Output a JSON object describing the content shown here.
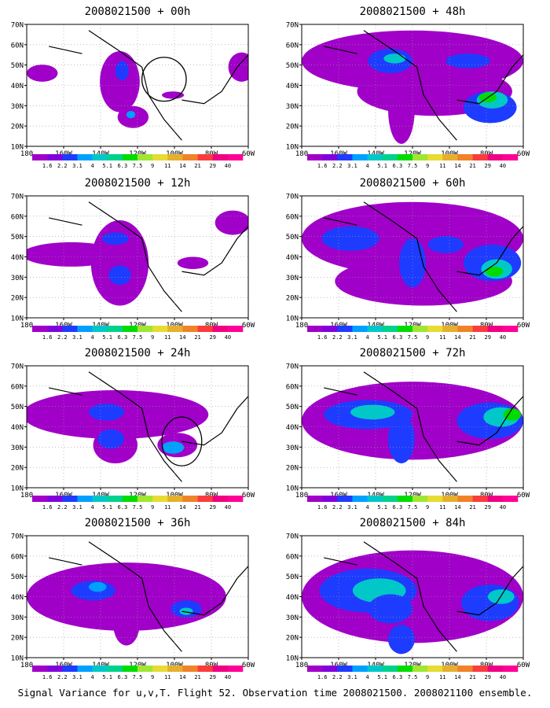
{
  "caption": "Signal Variance for u,v,T. Flight 52. Observation time 2008021500. 2008021100 ensemble.",
  "lat_labels": [
    "70N",
    "60N",
    "50N",
    "40N",
    "30N",
    "20N",
    "10N"
  ],
  "lon_labels": [
    "180",
    "160W",
    "140W",
    "120W",
    "100W",
    "80W",
    "60W"
  ],
  "colorbar": {
    "labels": [
      "1.6",
      "2.2",
      "3.1",
      "4",
      "5.1",
      "6.3",
      "7.5",
      "9",
      "11",
      "14",
      "21",
      "29",
      "40"
    ],
    "colors": [
      "#a000c8",
      "#8200dc",
      "#1e3cff",
      "#00a0ff",
      "#00c8c8",
      "#00d28c",
      "#00dc00",
      "#a0e632",
      "#e6dc32",
      "#e6af2d",
      "#f08228",
      "#fa3c3c",
      "#f00082",
      "#ff0096"
    ]
  },
  "panels": [
    {
      "title": "2008021500 + 00h",
      "circle": true,
      "lead_hours": 0
    },
    {
      "title": "2008021500 + 48h",
      "circle": false,
      "lead_hours": 48
    },
    {
      "title": "2008021500 + 12h",
      "circle": false,
      "lead_hours": 12
    },
    {
      "title": "2008021500 + 60h",
      "circle": false,
      "lead_hours": 60
    },
    {
      "title": "2008021500 + 24h",
      "circle": true,
      "lead_hours": 24
    },
    {
      "title": "2008021500 + 72h",
      "circle": false,
      "lead_hours": 72
    },
    {
      "title": "2008021500 + 36h",
      "circle": false,
      "lead_hours": 36
    },
    {
      "title": "2008021500 + 84h",
      "circle": false,
      "lead_hours": 84
    }
  ]
}
